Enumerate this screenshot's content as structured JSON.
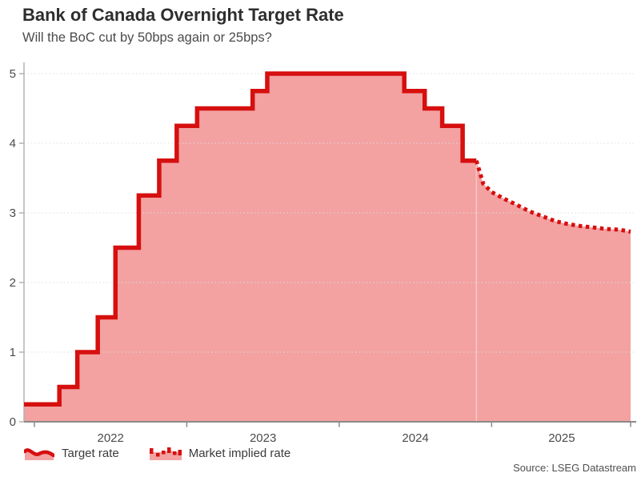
{
  "header": {
    "title": "Bank of Canada Overnight Target Rate",
    "subtitle": "Will the BoC cut by 50bps again or 25bps?"
  },
  "legend": {
    "target_rate_label": "Target rate",
    "market_implied_label": "Market implied rate"
  },
  "source": "Source: LSEG Datastream",
  "colors": {
    "line_red": "#d60f0f",
    "fill_pink": "#f3a1a1",
    "grid": "#dedede",
    "y_axis": "#b3b3b3",
    "x_axis": "#8a8a8a",
    "tick_text": "#4a4a4a",
    "seam": "rgba(255,255,255,0.5)"
  },
  "chart_data": {
    "type": "line",
    "title": "Bank of Canada Overnight Target Rate",
    "subtitle": "Will the BoC cut by 50bps again or 25bps?",
    "xlabel": "",
    "ylabel": "",
    "xlim": [
      2021.932,
      2025.912
    ],
    "ylim": [
      0,
      5
    ],
    "grid": "dotted-horizontal",
    "legend_position": "bottom-left",
    "yticks": [
      0,
      1,
      2,
      3,
      4,
      5
    ],
    "x_tick_positions": [
      2022,
      2023,
      2024,
      2025,
      2025.912
    ],
    "x_year_labels": [
      {
        "label": "2022",
        "x": 2022.5
      },
      {
        "label": "2023",
        "x": 2023.5
      },
      {
        "label": "2024",
        "x": 2024.5
      },
      {
        "label": "2025",
        "x": 2025.46
      }
    ],
    "series": [
      {
        "name": "Target rate",
        "style": "solid-step",
        "points": [
          [
            2021.932,
            0.25
          ],
          [
            2022.164,
            0.5
          ],
          [
            2022.282,
            1.0
          ],
          [
            2022.416,
            1.5
          ],
          [
            2022.532,
            2.5
          ],
          [
            2022.685,
            3.25
          ],
          [
            2022.819,
            3.75
          ],
          [
            2022.934,
            4.25
          ],
          [
            2023.068,
            4.5
          ],
          [
            2023.432,
            4.75
          ],
          [
            2023.528,
            5.0
          ],
          [
            2024.427,
            4.75
          ],
          [
            2024.561,
            4.5
          ],
          [
            2024.676,
            4.25
          ],
          [
            2024.81,
            3.75
          ],
          [
            2024.9,
            3.75
          ]
        ]
      },
      {
        "name": "Market implied rate",
        "style": "dotted",
        "points": [
          [
            2024.9,
            3.75
          ],
          [
            2024.945,
            3.42
          ],
          [
            2025.0,
            3.3
          ],
          [
            2025.085,
            3.2
          ],
          [
            2025.17,
            3.11
          ],
          [
            2025.25,
            3.02
          ],
          [
            2025.335,
            2.95
          ],
          [
            2025.42,
            2.88
          ],
          [
            2025.5,
            2.84
          ],
          [
            2025.585,
            2.81
          ],
          [
            2025.67,
            2.79
          ],
          [
            2025.75,
            2.77
          ],
          [
            2025.835,
            2.76
          ],
          [
            2025.912,
            2.73
          ]
        ]
      }
    ]
  }
}
